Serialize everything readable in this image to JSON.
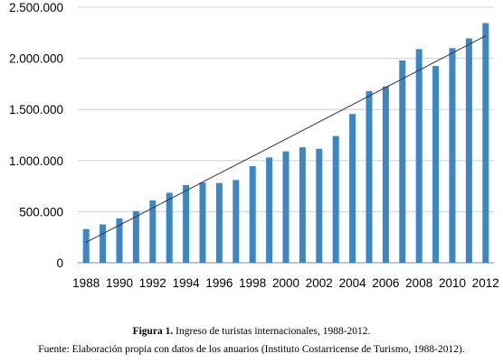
{
  "caption": {
    "figure_number": "Figura 1.",
    "figure_title": "Ingreso de turistas internacionales, 1988-2012."
  },
  "source": "Fuente: Elaboración propia con datos de los anuarios  (Instituto Costarricense de Turismo, 1988-2012).",
  "chart_data": {
    "type": "bar",
    "title": "",
    "xlabel": "",
    "ylabel": "",
    "categories": [
      "1988",
      "1989",
      "1990",
      "1991",
      "1992",
      "1993",
      "1994",
      "1995",
      "1996",
      "1997",
      "1998",
      "1999",
      "2000",
      "2001",
      "2002",
      "2003",
      "2004",
      "2005",
      "2006",
      "2007",
      "2008",
      "2009",
      "2010",
      "2011",
      "2012"
    ],
    "series": [
      {
        "values": [
          330000,
          375000,
          435000,
          505000,
          610000,
          685000,
          760000,
          785000,
          780000,
          810000,
          945000,
          1030000,
          1090000,
          1130000,
          1115000,
          1240000,
          1455000,
          1680000,
          1725000,
          1980000,
          2090000,
          1925000,
          2100000,
          2195000,
          2345000
        ]
      }
    ],
    "trendline": {
      "type": "linear",
      "start_value": 200000,
      "end_value": 2220000
    },
    "ylim": [
      0,
      2500000
    ],
    "yticks": [
      0,
      500000,
      1000000,
      1500000,
      2000000,
      2500000
    ],
    "ytick_labels": [
      "0",
      "500.000",
      "1.000.000",
      "1.500.000",
      "2.000.000",
      "2.500.000"
    ],
    "xtick_labels": [
      "1988",
      "1990",
      "1992",
      "1994",
      "1996",
      "1998",
      "2000",
      "2002",
      "2004",
      "2006",
      "2008",
      "2010",
      "2012"
    ],
    "grid": "horizontal",
    "legend": "none",
    "colors": {
      "bar": "#3a87c8",
      "grid": "#d0d0d0",
      "axis": "#888888",
      "trendline": "#333333"
    }
  }
}
